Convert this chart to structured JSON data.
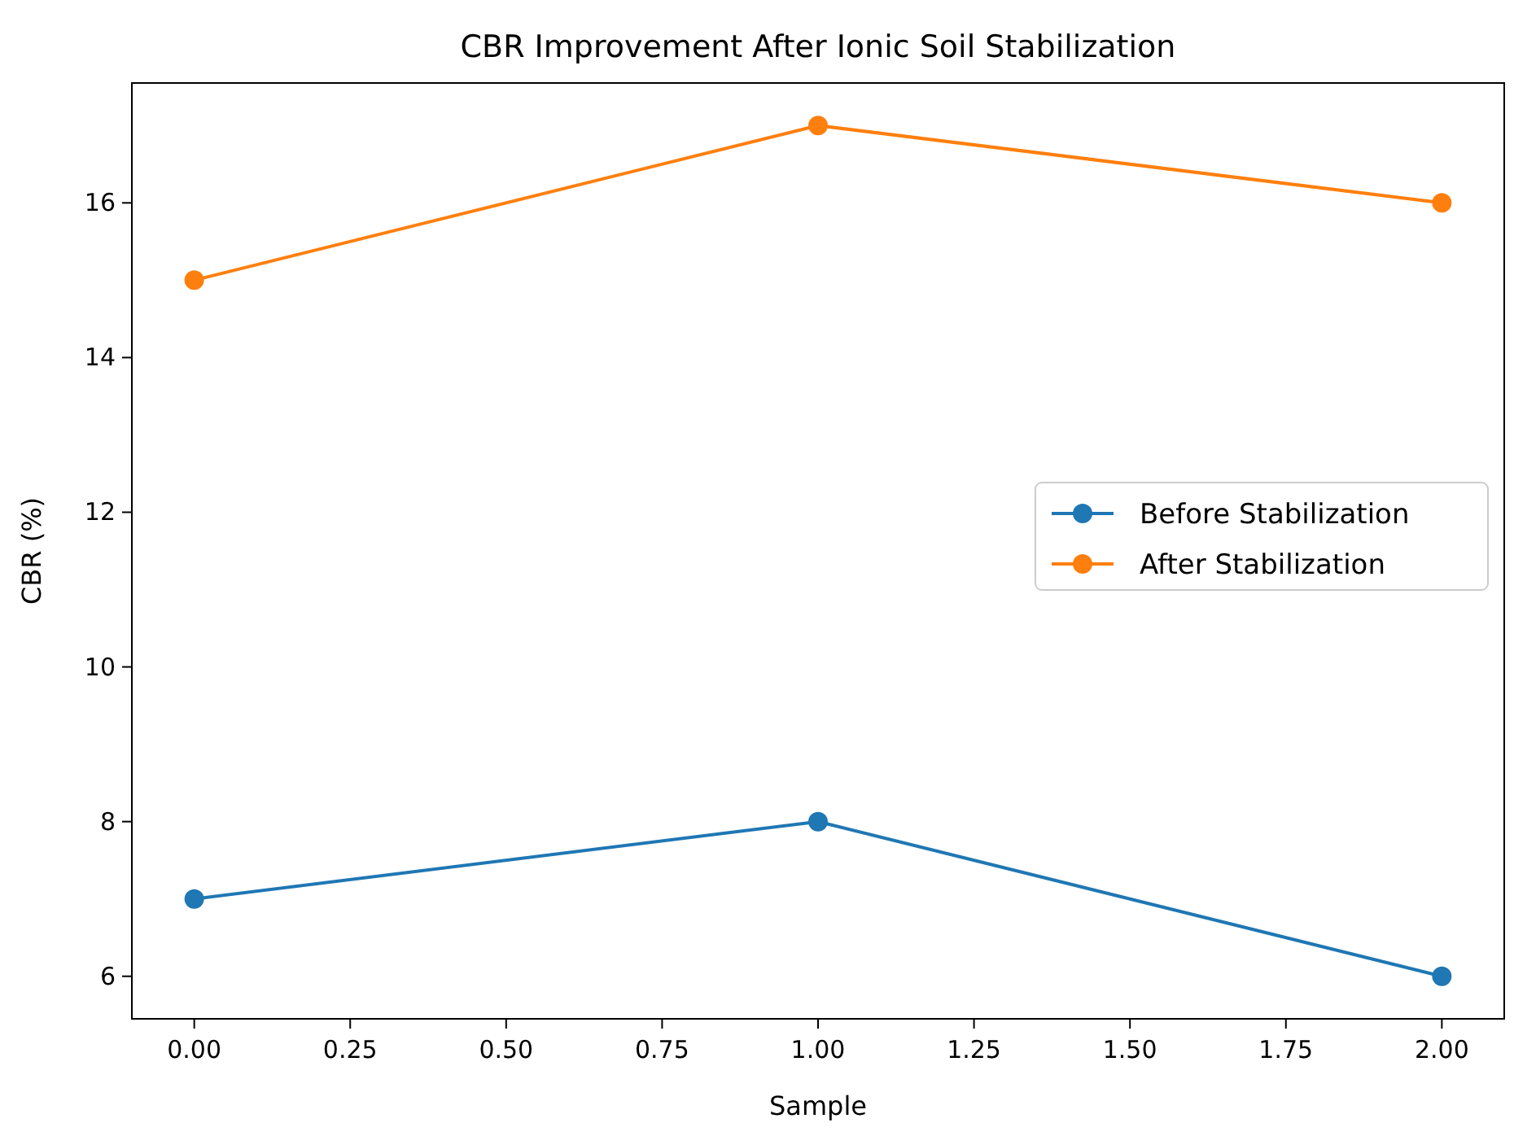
{
  "chart_data": {
    "type": "line",
    "title": "CBR Improvement After Ionic Soil Stabilization",
    "xlabel": "Sample",
    "ylabel": "CBR (%)",
    "x": [
      0,
      1,
      2
    ],
    "series": [
      {
        "name": "Before Stabilization",
        "color": "#1f77b4",
        "values": [
          7,
          8,
          6
        ]
      },
      {
        "name": "After Stabilization",
        "color": "#ff7f0e",
        "values": [
          15,
          17,
          16
        ]
      }
    ],
    "xlim": [
      -0.1,
      2.1
    ],
    "xticks": [
      {
        "value": 0,
        "label": "0.00"
      },
      {
        "value": 0.25,
        "label": "0.25"
      },
      {
        "value": 0.5,
        "label": "0.50"
      },
      {
        "value": 0.75,
        "label": "0.75"
      },
      {
        "value": 1,
        "label": "1.00"
      },
      {
        "value": 1.25,
        "label": "1.25"
      },
      {
        "value": 1.5,
        "label": "1.50"
      },
      {
        "value": 1.75,
        "label": "1.75"
      },
      {
        "value": 2,
        "label": "2.00"
      }
    ],
    "ylim": [
      5.45,
      17.55
    ],
    "yticks": [
      6,
      8,
      10,
      12,
      14,
      16
    ],
    "marker": "circle",
    "legend": "right",
    "grid": false
  }
}
